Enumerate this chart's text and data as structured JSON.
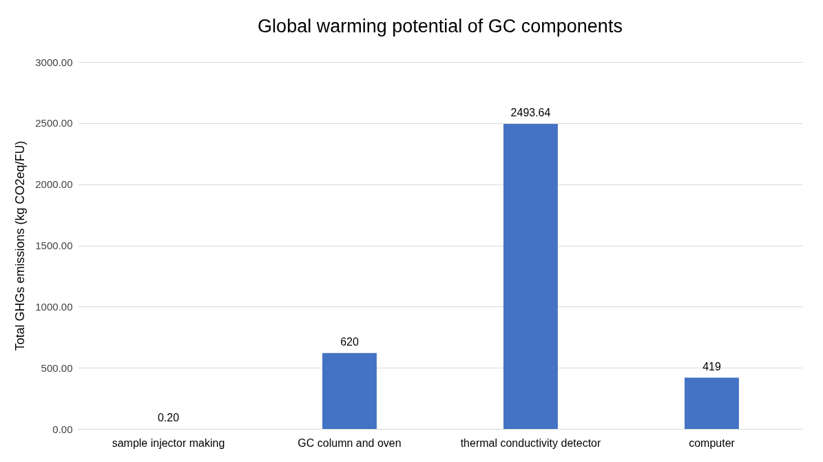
{
  "chart_data": {
    "type": "bar",
    "title": "Global warming potential of GC components",
    "ylabel": "Total GHGs emissions (kg CO2eq/FU)",
    "categories": [
      "sample injector making",
      "GC column and oven",
      "thermal conductivity detector",
      "computer"
    ],
    "values": [
      0.2,
      620,
      2493.64,
      419
    ],
    "value_labels": [
      "0.20",
      "620",
      "2493.64",
      "419"
    ],
    "color": "#4472c4",
    "ylim": [
      0,
      3000
    ],
    "yticks": [
      {
        "value": 0,
        "label": "0.00"
      },
      {
        "value": 500,
        "label": "500.00"
      },
      {
        "value": 1000,
        "label": "1000.00"
      },
      {
        "value": 1500,
        "label": "1500.00"
      },
      {
        "value": 2000,
        "label": "2000.00"
      },
      {
        "value": 2500,
        "label": "2500.00"
      },
      {
        "value": 3000,
        "label": "3000.00"
      }
    ],
    "grid": "y"
  }
}
